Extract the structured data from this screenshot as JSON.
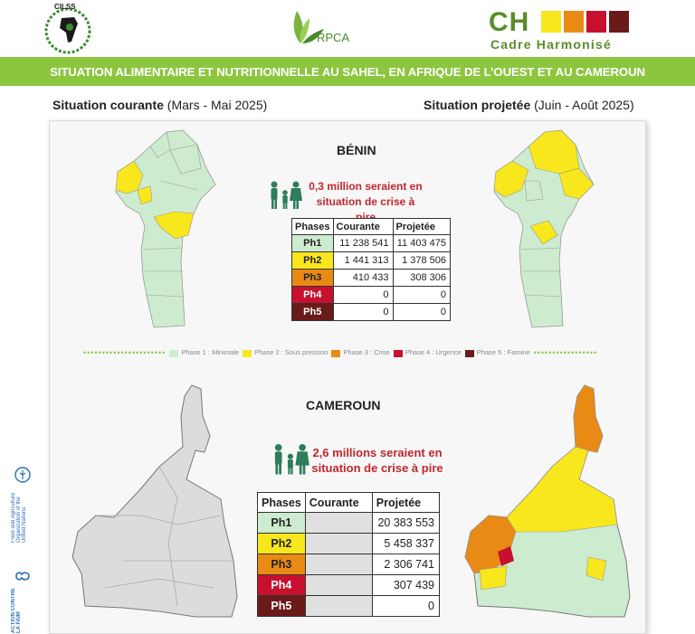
{
  "header": {
    "cilss_label": "CILSS",
    "rpca_label": "RPCA",
    "ch_label": "CH",
    "ch_subtitle": "Cadre Harmonisé",
    "banner": "SITUATION ALIMENTAIRE ET NUTRITIONNELLE AU SAHEL, EN AFRIQUE DE L’OUEST ET AU CAMEROUN"
  },
  "current": {
    "label": "Situation courante",
    "period": "(Mars - Mai 2025)"
  },
  "projected": {
    "label": "Situation projetée",
    "period": "(Juin - Août 2025)"
  },
  "colors": {
    "ph1": "#cdeccf",
    "ph2": "#f8e71c",
    "ph3": "#e98a15",
    "ph4": "#c8102e",
    "ph5": "#6b1a1a",
    "green": "#8cc63f",
    "ch_green": "#5b8c2a"
  },
  "benin": {
    "title": "BÉNIN",
    "message_line1": "0,3 million seraient en",
    "message_line2": "situation de crise à pire",
    "headers": [
      "Phases",
      "Courante",
      "Projetée"
    ],
    "rows": [
      {
        "phase": "Ph1",
        "courante": "11 238 541",
        "projetee": "11 403 475"
      },
      {
        "phase": "Ph2",
        "courante": "1 441 313",
        "projetee": "1 378 506"
      },
      {
        "phase": "Ph3",
        "courante": "410 433",
        "projetee": "308 306"
      },
      {
        "phase": "Ph4",
        "courante": "0",
        "projetee": "0"
      },
      {
        "phase": "Ph5",
        "courante": "0",
        "projetee": "0"
      }
    ]
  },
  "legend": [
    {
      "label": "Phase 1 : Minimale",
      "color": "#cdeccf"
    },
    {
      "label": "Phase 2 : Sous pression",
      "color": "#f8e71c"
    },
    {
      "label": "Phase 3 : Crise",
      "color": "#e98a15"
    },
    {
      "label": "Phase 4 : Urgence",
      "color": "#c8102e"
    },
    {
      "label": "Phase 5 : Famine",
      "color": "#6b1a1a"
    }
  ],
  "cameroun": {
    "title": "CAMEROUN",
    "message_line1": "2,6 millions seraient en",
    "message_line2": "situation de crise à pire",
    "headers": [
      "Phases",
      "Courante",
      "Projetée"
    ],
    "rows": [
      {
        "phase": "Ph1",
        "courante": "",
        "projetee": "20 383 553"
      },
      {
        "phase": "Ph2",
        "courante": "",
        "projetee": "5 458 337"
      },
      {
        "phase": "Ph3",
        "courante": "",
        "projetee": "2 306 741"
      },
      {
        "phase": "Ph4",
        "courante": "",
        "projetee": "307 439"
      },
      {
        "phase": "Ph5",
        "courante": "",
        "projetee": "0"
      }
    ]
  },
  "side_logos": {
    "fao": "Food and Agriculture Organization of the United Nations",
    "acf": "ACTION CONTRE LA FAIM"
  }
}
